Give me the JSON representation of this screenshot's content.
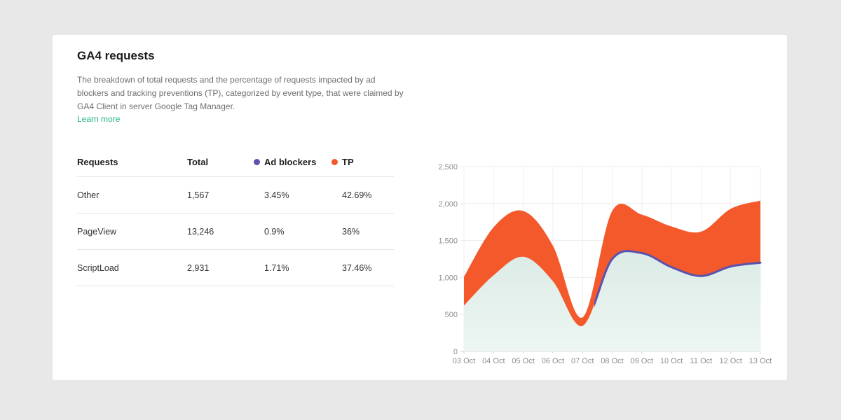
{
  "page": {
    "background": "#e8e8e8"
  },
  "card": {
    "title": "GA4 requests",
    "description": "The breakdown of total requests and the percentage of requests impacted by ad blockers and tracking preventions (TP), categorized by event type, that were claimed by GA4 Client in server Google Tag Manager.",
    "learn_more_label": "Learn more",
    "learn_more_color": "#24b38b"
  },
  "table": {
    "columns": [
      {
        "label": "Requests"
      },
      {
        "label": "Total"
      },
      {
        "label": "Ad blockers",
        "dot_color": "#5a52af"
      },
      {
        "label": "TP",
        "dot_color": "#f4592b"
      }
    ],
    "rows": [
      {
        "request": "Other",
        "total": "1,567",
        "ad_blockers": "3.45%",
        "tp": "42.69%"
      },
      {
        "request": "PageView",
        "total": "13,246",
        "ad_blockers": "0.9%",
        "tp": "36%"
      },
      {
        "request": "ScriptLoad",
        "total": "2,931",
        "ad_blockers": "1.71%",
        "tp": "37.46%"
      }
    ]
  },
  "chart_data": {
    "type": "area",
    "title": "",
    "x": [
      "03 Oct",
      "04 Oct",
      "05 Oct",
      "06 Oct",
      "07 Oct",
      "08 Oct",
      "09 Oct",
      "10 Oct",
      "11 Oct",
      "12 Oct",
      "13 Oct"
    ],
    "series": [
      {
        "name": "TP",
        "color": "#f4592b",
        "values": [
          1010,
          1680,
          1900,
          1430,
          460,
          1900,
          1850,
          1690,
          1620,
          1930,
          2040
        ]
      },
      {
        "name": "Ad blockers",
        "color": "#5a52af",
        "fill_top": "#dcebe6",
        "fill_bottom": "#edf6f2",
        "values": [
          620,
          1030,
          1280,
          950,
          345,
          1250,
          1330,
          1140,
          1020,
          1150,
          1200
        ],
        "line_visible_from_index": 4.4
      }
    ],
    "ylim": [
      0,
      2500
    ],
    "y_tick_values": [
      0,
      500,
      1000,
      1500,
      2000,
      2500
    ],
    "y_ticks": [
      "0",
      "500",
      "1,000",
      "1,500",
      "2,000",
      "2,500"
    ],
    "grid": true,
    "legend_position": "in-table-header"
  }
}
